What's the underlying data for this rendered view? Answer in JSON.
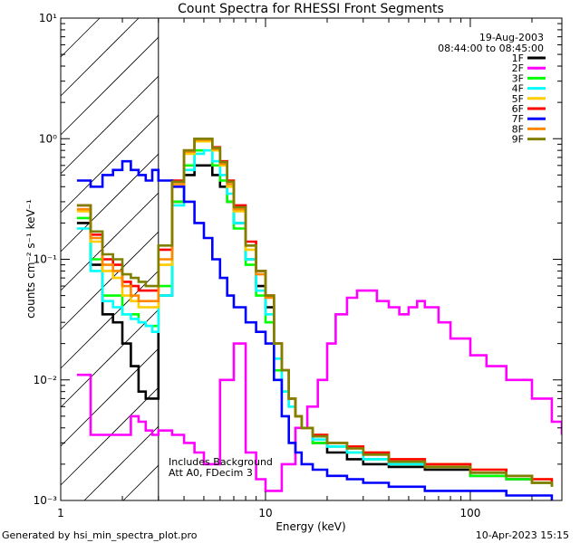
{
  "chart_data": {
    "type": "line",
    "title": "Count Spectra for RHESSI Front Segments",
    "xlabel": "Energy (keV)",
    "ylabel": "counts cm⁻² s⁻¹ keV⁻¹",
    "xscale": "log",
    "yscale": "log",
    "xlim": [
      1,
      280
    ],
    "ylim": [
      0.001,
      10
    ],
    "x_ticks": [
      1,
      10,
      100
    ],
    "x_tick_labels": [
      "1",
      "10",
      "100"
    ],
    "y_ticks": [
      0.001,
      0.01,
      0.1,
      1,
      10
    ],
    "y_tick_labels": [
      "10⁻³",
      "10⁻²",
      "10⁻¹",
      "10⁰",
      "10¹"
    ],
    "attenuated_region_kev": [
      1,
      3
    ],
    "date": "19-Aug-2003",
    "time_range": "08:44:00 to 08:45:00",
    "annotation": [
      "Includes Background",
      "Att A0, FDecim 3"
    ],
    "legend_position": "top-right",
    "series": [
      {
        "name": "1F",
        "color": "#000000",
        "x": [
          1.2,
          1.4,
          1.6,
          1.8,
          2.0,
          2.2,
          2.4,
          2.6,
          2.8,
          3.0,
          3.5,
          4.0,
          4.5,
          5.0,
          5.5,
          6.0,
          6.5,
          7.0,
          8.0,
          9.0,
          10,
          11,
          12,
          13,
          14,
          15,
          17,
          20,
          25,
          30,
          40,
          60,
          100,
          150,
          200,
          250
        ],
        "y": [
          0.2,
          0.09,
          0.035,
          0.03,
          0.02,
          0.013,
          0.008,
          0.007,
          0.007,
          0.05,
          0.3,
          0.5,
          0.6,
          0.6,
          0.5,
          0.4,
          0.3,
          0.2,
          0.1,
          0.06,
          0.04,
          0.02,
          0.012,
          0.007,
          0.005,
          0.004,
          0.003,
          0.0025,
          0.0022,
          0.002,
          0.0019,
          0.0018,
          0.0016,
          0.0015,
          0.0014,
          0.0013
        ]
      },
      {
        "name": "2F",
        "color": "#ff00ff",
        "x": [
          1.2,
          1.4,
          1.6,
          1.8,
          2.0,
          2.2,
          2.4,
          2.6,
          2.8,
          3.0,
          3.5,
          4.0,
          4.5,
          5.0,
          6.0,
          7.0,
          8.0,
          9.0,
          10,
          12,
          14,
          16,
          18,
          20,
          22,
          25,
          28,
          30,
          35,
          40,
          45,
          50,
          55,
          60,
          70,
          80,
          100,
          120,
          150,
          200,
          250,
          280
        ],
        "y": [
          0.011,
          0.0035,
          0.0035,
          0.0035,
          0.0035,
          0.005,
          0.0045,
          0.0038,
          0.0035,
          0.0038,
          0.0035,
          0.003,
          0.0025,
          0.002,
          0.01,
          0.02,
          0.0025,
          0.0015,
          0.0012,
          0.002,
          0.004,
          0.006,
          0.01,
          0.02,
          0.035,
          0.048,
          0.055,
          0.055,
          0.045,
          0.04,
          0.035,
          0.04,
          0.045,
          0.04,
          0.03,
          0.022,
          0.016,
          0.013,
          0.01,
          0.007,
          0.0045,
          0.0035
        ]
      },
      {
        "name": "3F",
        "color": "#00ff00",
        "x": [
          1.2,
          1.4,
          1.6,
          1.8,
          2.0,
          2.2,
          2.4,
          2.6,
          2.8,
          3.0,
          3.5,
          4.0,
          4.5,
          5.0,
          5.5,
          6.0,
          6.5,
          7.0,
          8.0,
          9.0,
          10,
          11,
          12,
          13,
          14,
          15,
          17,
          20,
          25,
          30,
          40,
          60,
          100,
          150,
          200,
          250
        ],
        "y": [
          0.22,
          0.1,
          0.05,
          0.05,
          0.035,
          0.035,
          0.03,
          0.028,
          0.028,
          0.06,
          0.3,
          0.6,
          0.8,
          0.8,
          0.6,
          0.45,
          0.3,
          0.18,
          0.09,
          0.05,
          0.03,
          0.012,
          0.008,
          0.006,
          0.005,
          0.004,
          0.003,
          0.0028,
          0.0025,
          0.0022,
          0.002,
          0.0019,
          0.0016,
          0.0015,
          0.0014,
          0.0013
        ]
      },
      {
        "name": "4F",
        "color": "#00ffff",
        "x": [
          1.2,
          1.4,
          1.6,
          1.8,
          2.0,
          2.2,
          2.4,
          2.6,
          2.8,
          3.0,
          3.5,
          4.0,
          4.5,
          5.0,
          5.5,
          6.0,
          6.5,
          7.0,
          8.0,
          9.0,
          10,
          11,
          12,
          13,
          14,
          15,
          17,
          20,
          25,
          30,
          40,
          60,
          100,
          150,
          200,
          250
        ],
        "y": [
          0.18,
          0.08,
          0.045,
          0.04,
          0.035,
          0.032,
          0.03,
          0.028,
          0.025,
          0.05,
          0.28,
          0.55,
          0.75,
          0.8,
          0.65,
          0.5,
          0.35,
          0.2,
          0.1,
          0.055,
          0.035,
          0.015,
          0.008,
          0.006,
          0.005,
          0.004,
          0.0032,
          0.0028,
          0.0025,
          0.0022,
          0.002,
          0.0019,
          0.0017,
          0.0016,
          0.0014,
          0.0013
        ]
      },
      {
        "name": "5F",
        "color": "#ffcc00",
        "x": [
          1.2,
          1.4,
          1.6,
          1.8,
          2.0,
          2.2,
          2.4,
          2.6,
          2.8,
          3.0,
          3.5,
          4.0,
          4.5,
          5.0,
          5.5,
          6.0,
          6.5,
          7.0,
          8.0,
          9.0,
          10,
          11,
          12,
          13,
          14,
          15,
          17,
          20,
          25,
          30,
          40,
          60,
          100,
          150,
          200,
          250
        ],
        "y": [
          0.25,
          0.14,
          0.08,
          0.07,
          0.05,
          0.045,
          0.04,
          0.04,
          0.04,
          0.09,
          0.4,
          0.75,
          0.95,
          0.95,
          0.8,
          0.6,
          0.4,
          0.25,
          0.12,
          0.08,
          0.05,
          0.02,
          0.012,
          0.007,
          0.005,
          0.004,
          0.0035,
          0.003,
          0.0028,
          0.0025,
          0.0022,
          0.002,
          0.0018,
          0.0016,
          0.0015,
          0.0014
        ]
      },
      {
        "name": "6F",
        "color": "#ff0000",
        "x": [
          1.2,
          1.4,
          1.6,
          1.8,
          2.0,
          2.2,
          2.4,
          2.6,
          2.8,
          3.0,
          3.5,
          4.0,
          4.5,
          5.0,
          5.5,
          6.0,
          6.5,
          7.0,
          8.0,
          9.0,
          10,
          11,
          12,
          13,
          14,
          15,
          17,
          20,
          25,
          30,
          40,
          60,
          100,
          150,
          200,
          250
        ],
        "y": [
          0.28,
          0.16,
          0.1,
          0.09,
          0.065,
          0.06,
          0.055,
          0.055,
          0.055,
          0.12,
          0.45,
          0.8,
          1.0,
          1.0,
          0.85,
          0.65,
          0.45,
          0.28,
          0.14,
          0.08,
          0.05,
          0.02,
          0.012,
          0.007,
          0.005,
          0.004,
          0.0035,
          0.003,
          0.0028,
          0.0025,
          0.0022,
          0.002,
          0.0018,
          0.0016,
          0.0015,
          0.0014
        ]
      },
      {
        "name": "7F",
        "color": "#0000ff",
        "x": [
          1.2,
          1.4,
          1.6,
          1.8,
          2.0,
          2.2,
          2.4,
          2.6,
          2.8,
          3.0,
          3.5,
          4.0,
          4.5,
          5.0,
          5.5,
          6.0,
          6.5,
          7.0,
          8.0,
          9.0,
          10,
          11,
          12,
          13,
          14,
          15,
          17,
          20,
          25,
          30,
          40,
          60,
          100,
          150,
          200,
          250
        ],
        "y": [
          0.45,
          0.4,
          0.5,
          0.55,
          0.65,
          0.55,
          0.5,
          0.45,
          0.55,
          0.45,
          0.4,
          0.3,
          0.2,
          0.15,
          0.1,
          0.07,
          0.05,
          0.04,
          0.03,
          0.025,
          0.02,
          0.01,
          0.005,
          0.003,
          0.0025,
          0.002,
          0.0018,
          0.0016,
          0.0015,
          0.0014,
          0.0013,
          0.0012,
          0.0012,
          0.0011,
          0.0011,
          0.001
        ]
      },
      {
        "name": "8F",
        "color": "#ff8800",
        "x": [
          1.2,
          1.4,
          1.6,
          1.8,
          2.0,
          2.2,
          2.4,
          2.6,
          2.8,
          3.0,
          3.5,
          4.0,
          4.5,
          5.0,
          5.5,
          6.0,
          6.5,
          7.0,
          8.0,
          9.0,
          10,
          11,
          12,
          13,
          14,
          15,
          17,
          20,
          25,
          30,
          40,
          60,
          100,
          150,
          200,
          250
        ],
        "y": [
          0.26,
          0.15,
          0.09,
          0.08,
          0.06,
          0.05,
          0.045,
          0.045,
          0.045,
          0.1,
          0.42,
          0.78,
          0.98,
          0.98,
          0.82,
          0.62,
          0.42,
          0.26,
          0.13,
          0.075,
          0.048,
          0.02,
          0.012,
          0.007,
          0.005,
          0.004,
          0.0034,
          0.003,
          0.0027,
          0.0024,
          0.0021,
          0.0019,
          0.0017,
          0.0016,
          0.0014,
          0.0013
        ]
      },
      {
        "name": "9F",
        "color": "#808000",
        "x": [
          1.2,
          1.4,
          1.6,
          1.8,
          2.0,
          2.2,
          2.4,
          2.6,
          2.8,
          3.0,
          3.5,
          4.0,
          4.5,
          5.0,
          5.5,
          6.0,
          6.5,
          7.0,
          8.0,
          9.0,
          10,
          11,
          12,
          13,
          14,
          15,
          17,
          20,
          25,
          30,
          40,
          60,
          100,
          150,
          200,
          250
        ],
        "y": [
          0.28,
          0.17,
          0.11,
          0.1,
          0.075,
          0.07,
          0.065,
          0.06,
          0.06,
          0.13,
          0.44,
          0.8,
          1.0,
          1.0,
          0.84,
          0.64,
          0.44,
          0.27,
          0.13,
          0.08,
          0.05,
          0.02,
          0.012,
          0.007,
          0.005,
          0.004,
          0.0034,
          0.003,
          0.0027,
          0.0024,
          0.0021,
          0.0019,
          0.0017,
          0.0016,
          0.0014,
          0.0013
        ]
      }
    ]
  },
  "footer": {
    "generated_by": "Generated by hsi_min_spectra_plot.pro",
    "timestamp": "10-Apr-2023 15:15"
  }
}
